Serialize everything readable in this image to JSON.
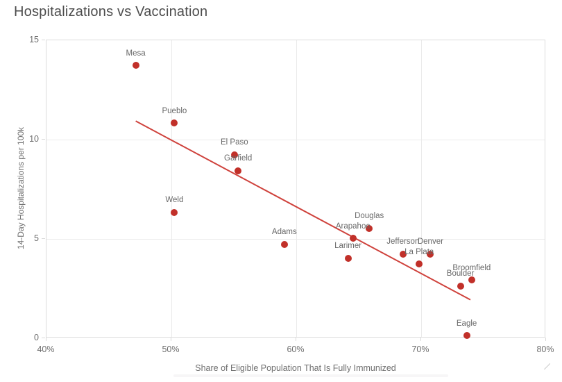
{
  "title": "Hospitalizations vs Vaccination",
  "chart_data": {
    "type": "scatter",
    "title": "Hospitalizations vs Vaccination",
    "xlabel": "Share of Eligible Population That Is Fully Immunized",
    "ylabel": "14-Day Hospitalizations per 100k",
    "xlim": [
      40,
      80
    ],
    "ylim": [
      0,
      15
    ],
    "x_ticks": [
      {
        "value": 40,
        "label": "40%"
      },
      {
        "value": 50,
        "label": "50%"
      },
      {
        "value": 60,
        "label": "60%"
      },
      {
        "value": 70,
        "label": "70%"
      },
      {
        "value": 80,
        "label": "80%"
      }
    ],
    "y_ticks": [
      {
        "value": 0,
        "label": "0"
      },
      {
        "value": 5,
        "label": "5"
      },
      {
        "value": 10,
        "label": "10"
      },
      {
        "value": 15,
        "label": "15"
      }
    ],
    "grid": true,
    "legend": "none",
    "point_color": "#c13029",
    "trend_color": "#cf423c",
    "points": [
      {
        "label": "Mesa",
        "x": 47.2,
        "y": 13.7
      },
      {
        "label": "Pueblo",
        "x": 50.3,
        "y": 10.8
      },
      {
        "label": "El Paso",
        "x": 55.1,
        "y": 9.2
      },
      {
        "label": "Garfield",
        "x": 55.4,
        "y": 8.4
      },
      {
        "label": "Weld",
        "x": 50.3,
        "y": 6.3
      },
      {
        "label": "Adams",
        "x": 59.1,
        "y": 4.7
      },
      {
        "label": "Douglas",
        "x": 65.9,
        "y": 5.5
      },
      {
        "label": "Arapahoe",
        "x": 64.6,
        "y": 5.0
      },
      {
        "label": "Larimer",
        "x": 64.2,
        "y": 4.0
      },
      {
        "label": "Jefferson",
        "x": 68.6,
        "y": 4.2
      },
      {
        "label": "Denver",
        "x": 70.8,
        "y": 4.2
      },
      {
        "label": "La Plata",
        "x": 69.9,
        "y": 3.7
      },
      {
        "label": "Boulder",
        "x": 73.2,
        "y": 2.6
      },
      {
        "label": "Broomfield",
        "x": 74.1,
        "y": 2.9
      },
      {
        "label": "Eagle",
        "x": 73.7,
        "y": 0.1
      }
    ],
    "trendline": {
      "x1": 47.2,
      "y1": 10.9,
      "x2": 74.0,
      "y2": 1.9
    }
  }
}
